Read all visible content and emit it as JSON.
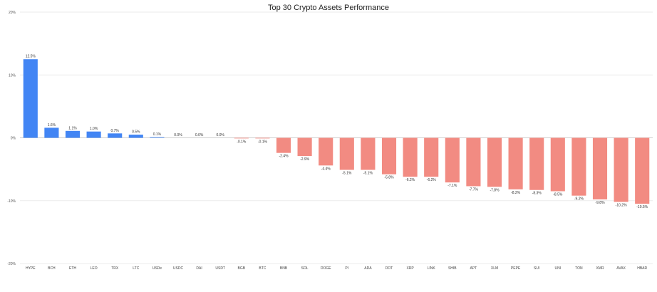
{
  "chart_data": {
    "type": "bar",
    "title": "Top 30 Crypto Assets Performance",
    "xlabel": "",
    "ylabel": "",
    "ylim": [
      -20,
      20
    ],
    "y_ticks": [
      {
        "value": 20,
        "label": "20%"
      },
      {
        "value": 10,
        "label": "10%"
      },
      {
        "value": 0,
        "label": "0%"
      },
      {
        "value": -10,
        "label": "-10%"
      },
      {
        "value": -20,
        "label": "-20%"
      }
    ],
    "grid": true,
    "legend": "none",
    "colors": {
      "positive": "#4285f4",
      "negative": "#f28b82"
    },
    "categories": [
      "HYPE",
      "BCH",
      "ETH",
      "LEO",
      "TRX",
      "LTC",
      "USDe",
      "USDC",
      "DAI",
      "USDT",
      "BGB",
      "BTC",
      "BNB",
      "SOL",
      "DOGE",
      "PI",
      "ADA",
      "DOT",
      "XRP",
      "LINK",
      "SHIB",
      "APT",
      "XLM",
      "PEPE",
      "SUI",
      "UNI",
      "TON",
      "XMR",
      "AVAX",
      "HBAR"
    ],
    "values": [
      12.5,
      1.6,
      1.1,
      1.0,
      0.7,
      0.5,
      0.1,
      0.0,
      0.0,
      0.0,
      -0.1,
      -0.1,
      -2.4,
      -2.9,
      -4.4,
      -5.1,
      -5.1,
      -5.8,
      -6.2,
      -6.2,
      -7.1,
      -7.7,
      -7.8,
      -8.2,
      -8.3,
      -8.5,
      -9.2,
      -9.8,
      -10.2,
      -10.5
    ],
    "data_labels": [
      "12.5%",
      "1.6%",
      "1.1%",
      "1.0%",
      "0.7%",
      "0.5%",
      "0.1%",
      "0.0%",
      "0.0%",
      "0.0%",
      "-0.1%",
      "-0.1%",
      "-2.4%",
      "-2.9%",
      "-4.4%",
      "-5.1%",
      "-5.1%",
      "-5.8%",
      "-6.2%",
      "-6.2%",
      "-7.1%",
      "-7.7%",
      "-7.8%",
      "-8.2%",
      "-8.3%",
      "-8.5%",
      "-9.2%",
      "-9.8%",
      "-10.2%",
      "-10.5%"
    ]
  }
}
